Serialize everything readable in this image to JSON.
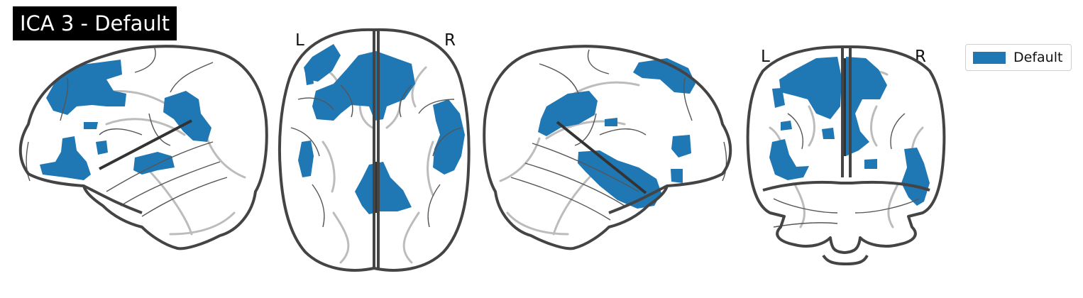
{
  "figure": {
    "title": "ICA 3 - Default",
    "legend_label": "Default",
    "component_color": "#1f77b4"
  },
  "views": {
    "axial": {
      "left_label": "L",
      "right_label": "R"
    },
    "coronal": {
      "left_label": "L",
      "right_label": "R"
    }
  }
}
